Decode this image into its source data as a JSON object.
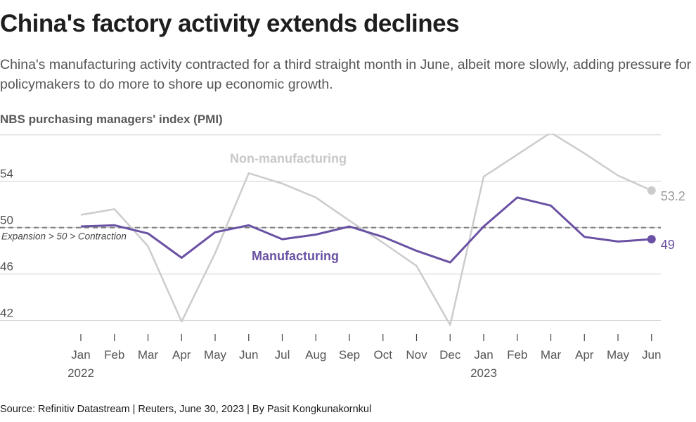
{
  "title": "China's factory activity extends declines",
  "subtitle": "China's manufacturing activity contracted for a third straight month in June, albeit more slowly, adding pressure for policymakers to do more to shore up economic growth.",
  "source": "Source: Refinitiv Datastream | Reuters, June 30, 2023 | By Pasit Kongkunakornkul",
  "colors": {
    "manufacturing": "#6a51a3",
    "non_manufacturing": "#cccccc",
    "threshold": "#7f7f7f",
    "grid": "#d0d0d0"
  },
  "chart_data": {
    "type": "line",
    "ylabel": "NBS purchasing managers' index (PMI)",
    "ylim": [
      41,
      57.5
    ],
    "yticks": [
      42,
      46,
      50,
      54,
      58
    ],
    "categories": [
      "Jan",
      "Feb",
      "Mar",
      "Apr",
      "May",
      "Jun",
      "Jul",
      "Aug",
      "Sep",
      "Oct",
      "Nov",
      "Dec",
      "Jan",
      "Feb",
      "Mar",
      "Apr",
      "May",
      "Jun"
    ],
    "year_labels": [
      {
        "index": 0,
        "label": "2022"
      },
      {
        "index": 12,
        "label": "2023"
      }
    ],
    "grid": true,
    "threshold": {
      "value": 50,
      "label": "Expansion > 50 > Contraction"
    },
    "series": [
      {
        "name": "Non-manufacturing",
        "values": [
          51.1,
          51.6,
          48.4,
          41.9,
          47.8,
          54.7,
          53.8,
          52.6,
          50.6,
          48.7,
          46.7,
          41.6,
          54.4,
          56.3,
          58.2,
          56.4,
          54.5,
          53.2
        ],
        "last_label": "53.2"
      },
      {
        "name": "Manufacturing",
        "values": [
          50.1,
          50.2,
          49.5,
          47.4,
          49.6,
          50.2,
          49.0,
          49.4,
          50.1,
          49.2,
          48.0,
          47.0,
          50.1,
          52.6,
          51.9,
          49.2,
          48.8,
          49.0
        ],
        "last_label": "49"
      }
    ]
  }
}
